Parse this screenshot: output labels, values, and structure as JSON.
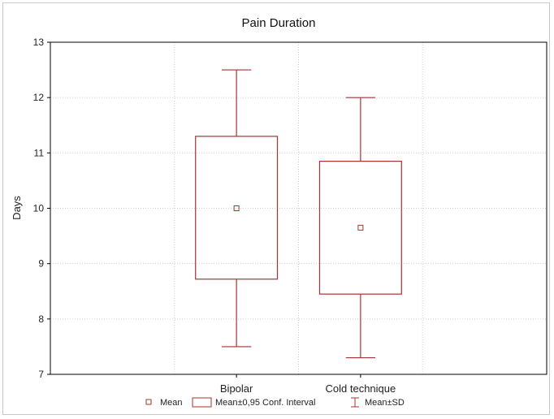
{
  "chart_data": {
    "type": "box",
    "title": "Pain Duration",
    "xlabel": "",
    "ylabel": "Days",
    "ylim": [
      7,
      13
    ],
    "yticks": [
      7,
      8,
      9,
      10,
      11,
      12,
      13
    ],
    "categories": [
      "Bipolar",
      "Cold technique"
    ],
    "series": [
      {
        "category": "Bipolar",
        "mean": 10.0,
        "ci_low": 8.72,
        "ci_high": 11.3,
        "sd_low": 7.5,
        "sd_high": 12.5
      },
      {
        "category": "Cold technique",
        "mean": 9.65,
        "ci_low": 8.45,
        "ci_high": 10.85,
        "sd_low": 7.3,
        "sd_high": 12.0
      }
    ],
    "legend": {
      "placement": "bottom",
      "items": [
        {
          "label": "Mean",
          "symbol": "square-marker"
        },
        {
          "label": "Mean±0,95 Conf. Interval",
          "symbol": "box"
        },
        {
          "label": "Mean±SD",
          "symbol": "whisker"
        }
      ]
    },
    "grid": true,
    "colors": {
      "series": "#a83232",
      "grid": "#cfcfcf",
      "axis": "#000000"
    }
  }
}
